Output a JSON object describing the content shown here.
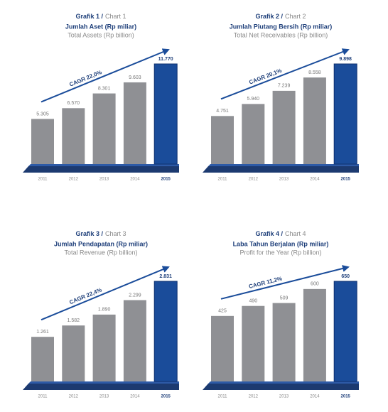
{
  "chart_data": [
    {
      "type": "bar",
      "title": "Grafik 1 /",
      "title_en": "Chart 1",
      "subtitle": "Jumlah Aset (Rp miliar)",
      "subtitle_en": "Total Assets (Rp billion)",
      "annotation": "CAGR 22,0%",
      "categories": [
        "2011",
        "2012",
        "2013",
        "2014",
        "2015"
      ],
      "values": [
        5305,
        6570,
        8301,
        9603,
        11770
      ],
      "value_labels": [
        "5.305",
        "6.570",
        "8.301",
        "9.603",
        "11.770"
      ],
      "colors": [
        "#8f9094",
        "#8f9094",
        "#8f9094",
        "#8f9094",
        "#1a4c9a"
      ]
    },
    {
      "type": "bar",
      "title": "Grafik 2 /",
      "title_en": "Chart 2",
      "subtitle": "Jumlah Piutang Bersih (Rp miliar)",
      "subtitle_en": "Total Net Receivables (Rp billion)",
      "annotation": "CAGR 20,1%",
      "categories": [
        "2011",
        "2012",
        "2013",
        "2014",
        "2015"
      ],
      "values": [
        4751,
        5940,
        7239,
        8558,
        9898
      ],
      "value_labels": [
        "4.751",
        "5.940",
        "7.239",
        "8.558",
        "9.898"
      ],
      "colors": [
        "#8f9094",
        "#8f9094",
        "#8f9094",
        "#8f9094",
        "#1a4c9a"
      ]
    },
    {
      "type": "bar",
      "title": "Grafik 3 /",
      "title_en": "Chart 3",
      "subtitle": "Jumlah Pendapatan (Rp miliar)",
      "subtitle_en": "Total Revenue (Rp billion)",
      "annotation": "CAGR 22,4%",
      "categories": [
        "2011",
        "2012",
        "2013",
        "2014",
        "2015"
      ],
      "values": [
        1261,
        1582,
        1890,
        2299,
        2831
      ],
      "value_labels": [
        "1.261",
        "1.582",
        "1.890",
        "2.299",
        "2.831"
      ],
      "colors": [
        "#8f9094",
        "#8f9094",
        "#8f9094",
        "#8f9094",
        "#1a4c9a"
      ]
    },
    {
      "type": "bar",
      "title": "Grafik 4 /",
      "title_en": "Chart 4",
      "subtitle": "Laba Tahun Berjalan (Rp miliar)",
      "subtitle_en": "Profit for the Year (Rp billion)",
      "annotation": "CAGR 11,2%",
      "categories": [
        "2011",
        "2012",
        "2013",
        "2014",
        "2015"
      ],
      "values": [
        425,
        490,
        509,
        600,
        650
      ],
      "colors": [
        "#8f9094",
        "#8f9094",
        "#8f9094",
        "#8f9094",
        "#1a4c9a"
      ]
    }
  ]
}
